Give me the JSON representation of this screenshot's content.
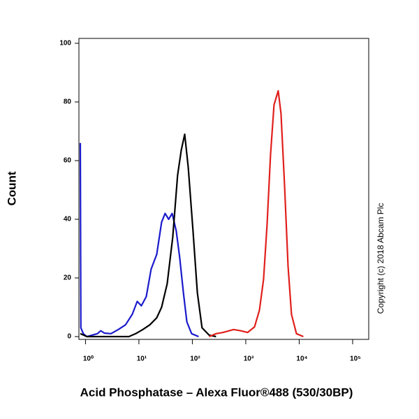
{
  "chart_data": {
    "type": "line",
    "xlabel": "Acid Phosphatase – Alexa Fluor®488 (530/30BP)",
    "ylabel": "Count",
    "annotation": "Copyright (c) 2018 Abcam Plc",
    "xscale": "log",
    "xlim": [
      0.8,
      200000
    ],
    "ylim": [
      0,
      100
    ],
    "xticks": [
      {
        "value": 1,
        "label": "10⁰"
      },
      {
        "value": 10,
        "label": "10¹"
      },
      {
        "value": 100,
        "label": "10²"
      },
      {
        "value": 1000,
        "label": "10³"
      },
      {
        "value": 10000,
        "label": "10⁴"
      },
      {
        "value": 100000,
        "label": "10⁵"
      }
    ],
    "yticks": [
      0,
      20,
      40,
      60,
      80,
      100
    ],
    "series": [
      {
        "color": "#1a1acc",
        "x": [
          0.8,
          0.82,
          0.91,
          1.06,
          1.67,
          1.94,
          2.25,
          3.0,
          4.1,
          5.6,
          7.5,
          9.3,
          11.1,
          13.7,
          16.9,
          21.5,
          26.6,
          30.9,
          36,
          41.8,
          50,
          58,
          68,
          79,
          97,
          131
        ],
        "values": [
          66,
          3,
          1,
          0,
          1,
          2,
          1.2,
          1,
          2.4,
          4,
          7.6,
          12,
          10.5,
          13.6,
          23,
          28,
          39,
          42,
          40,
          42,
          36,
          27,
          15,
          5,
          1,
          0
        ]
      },
      {
        "color": "#000000",
        "x": [
          0.8,
          1.06,
          6.5,
          8.7,
          11.8,
          16,
          21.5,
          26.6,
          33.8,
          43,
          53,
          62,
          72,
          84,
          103,
          124,
          152,
          206,
          278
        ],
        "values": [
          1,
          0,
          0,
          1,
          2.4,
          4,
          6.4,
          10,
          18,
          34,
          55,
          63.6,
          69,
          57.6,
          36,
          15,
          3,
          0.5,
          0
        ]
      },
      {
        "color": "#e0201c",
        "x": [
          206,
          278,
          376,
          590,
          798,
          1080,
          1460,
          1800,
          2150,
          2500,
          2910,
          3380,
          4050,
          4570,
          5310,
          6180,
          7180,
          8870,
          11970
        ],
        "values": [
          0,
          1,
          1.4,
          2.4,
          2,
          1.4,
          3.3,
          9,
          19.5,
          38,
          62,
          79,
          83.8,
          76,
          52,
          24,
          7.6,
          1,
          0
        ]
      }
    ]
  }
}
